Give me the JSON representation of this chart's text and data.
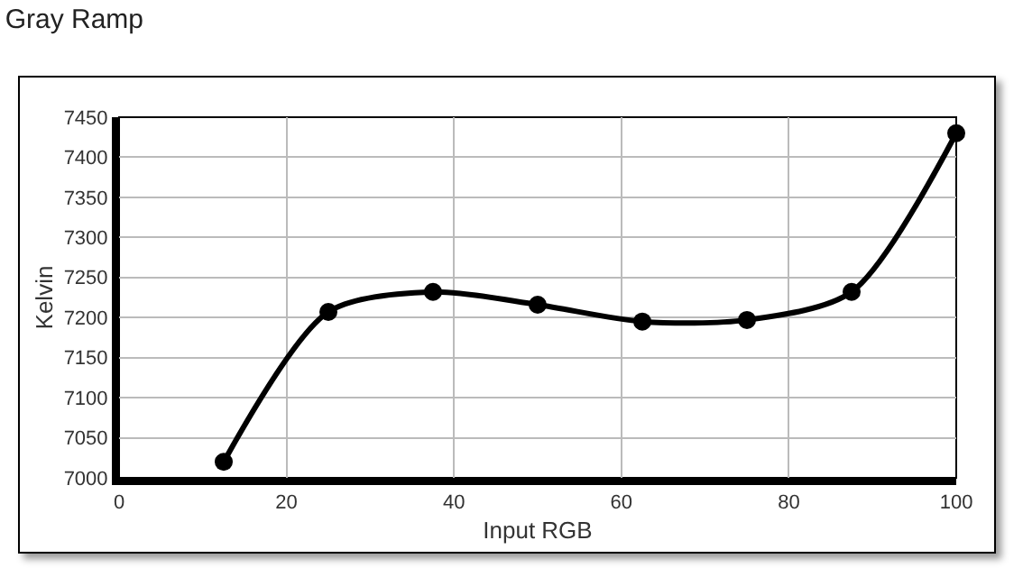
{
  "chart_data": {
    "type": "line",
    "title": "Gray Ramp",
    "xlabel": "Input RGB",
    "ylabel": "Kelvin",
    "x": [
      12.5,
      25,
      37.5,
      50,
      62.5,
      75,
      87.5,
      100
    ],
    "series": [
      {
        "color": "#000000",
        "values": [
          7020,
          7207,
          7232,
          7216,
          7195,
          7197,
          7232,
          7430
        ]
      }
    ],
    "xlim": [
      0,
      100
    ],
    "xticks": [
      0,
      20,
      40,
      60,
      80,
      100
    ],
    "ylim": [
      7000,
      7450
    ],
    "yticks": [
      7000,
      7050,
      7100,
      7150,
      7200,
      7250,
      7300,
      7350,
      7400,
      7450
    ],
    "grid": true,
    "marker": "circle",
    "line_style": "solid"
  }
}
